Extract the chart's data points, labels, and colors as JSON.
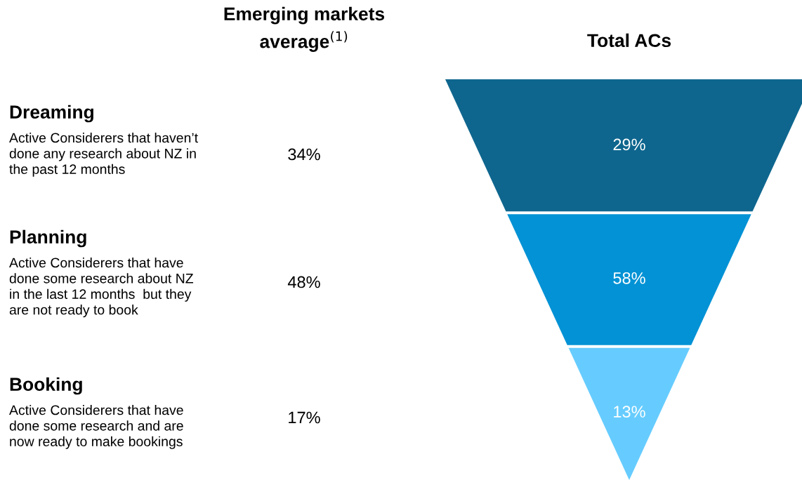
{
  "chart_data": {
    "type": "other",
    "title": "Total ACs",
    "categories": [
      "Dreaming",
      "Planning",
      "Booking"
    ],
    "series": [
      {
        "values": [
          29,
          58,
          13
        ],
        "value_labels": [
          "29%",
          "58%",
          "13%"
        ],
        "colors": [
          "#0e668e",
          "#0292d5",
          "#66ccff"
        ]
      },
      {
        "name": "Emerging markets\naverage$^{(1)}$",
        "values": [
          34,
          48,
          17
        ],
        "value_labels": [
          "34%",
          "48%",
          "17%"
        ],
        "color": "#000000"
      }
    ],
    "annotations": [
      "Active Considerers that haven’t\ndone any research about NZ in\nthe past 12 months",
      "Active Considerers that have\ndone some research about NZ\nin the last 12 months  but they\nare not ready to book",
      "Active Considerers that have\ndone some research and are\nnow ready to make bookings"
    ]
  }
}
